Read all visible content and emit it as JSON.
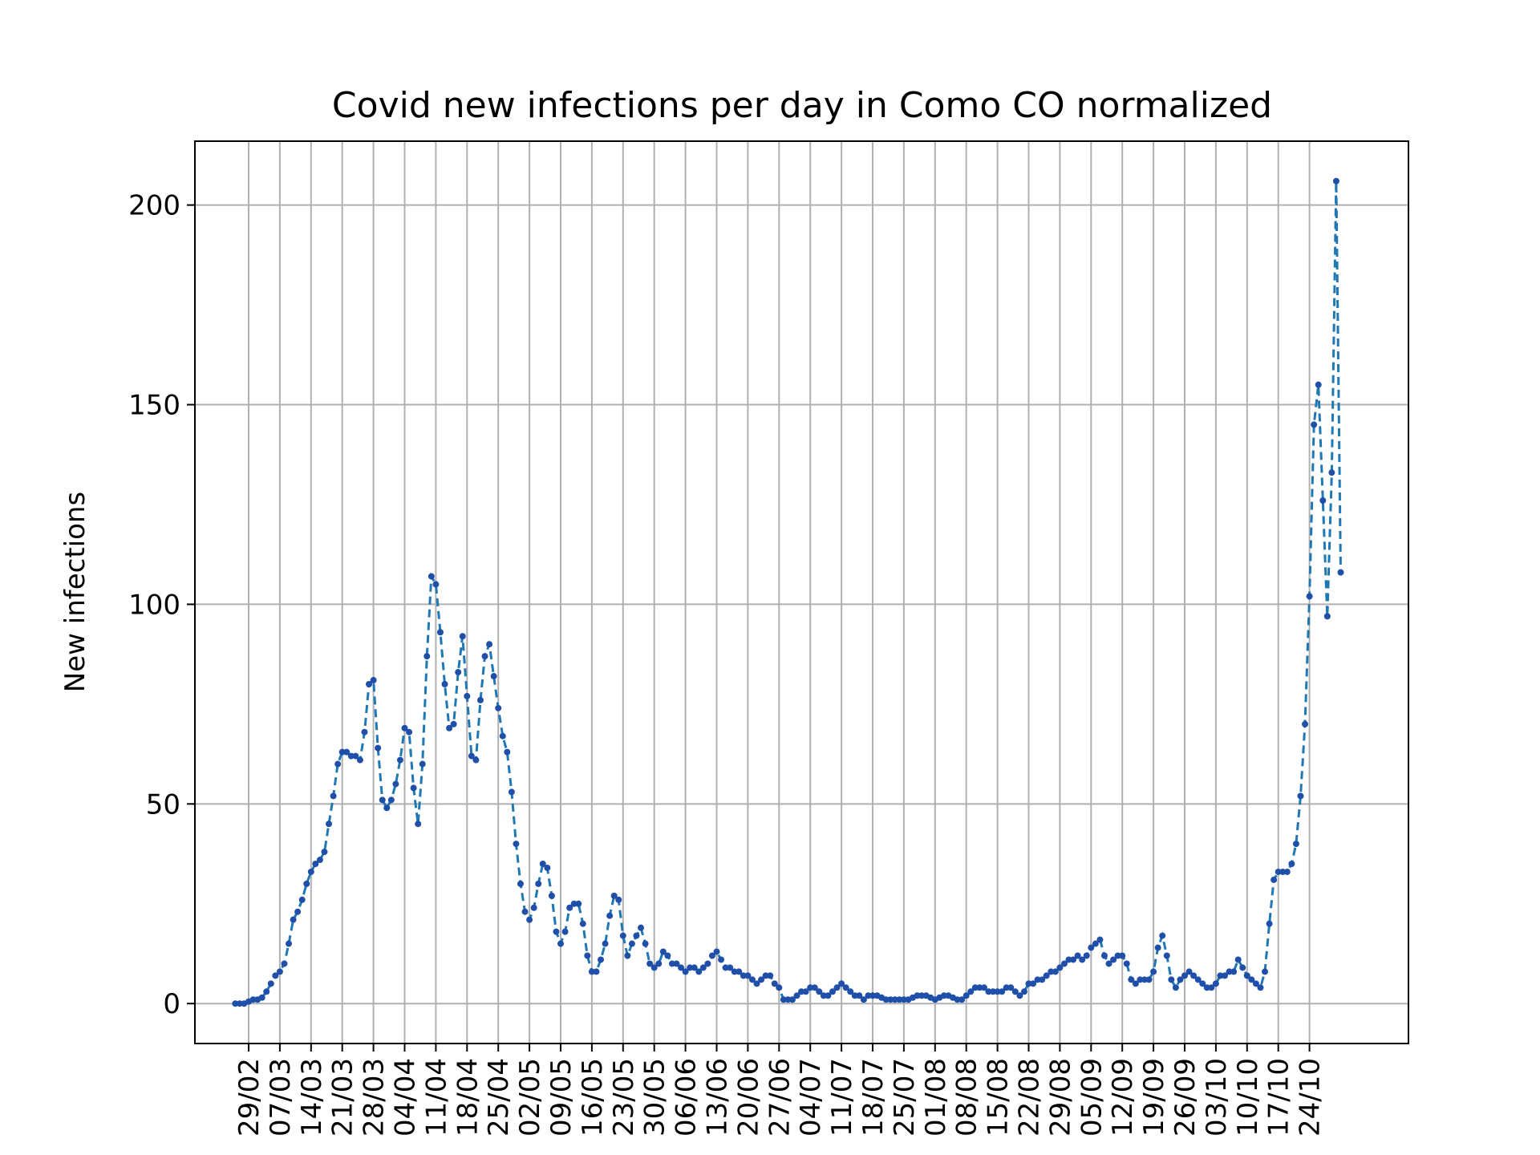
{
  "chart_data": {
    "type": "line",
    "title": "Covid new infections per day in Como CO normalized",
    "xlabel": "",
    "ylabel": "New infections",
    "ylim": [
      -10,
      216
    ],
    "yticks": [
      0,
      50,
      100,
      150,
      200
    ],
    "grid": true,
    "line_style": "dashed",
    "marker": "dot",
    "colors": {
      "line": "#1f77b4",
      "marker": "#1f4fa8"
    },
    "x_start": "2020-02-26",
    "xticks": [
      "29/02",
      "07/03",
      "14/03",
      "21/03",
      "28/03",
      "04/04",
      "11/04",
      "18/04",
      "25/04",
      "02/05",
      "09/05",
      "16/05",
      "23/05",
      "30/05",
      "06/06",
      "13/06",
      "20/06",
      "27/06",
      "04/07",
      "11/07",
      "18/07",
      "25/07",
      "01/08",
      "08/08",
      "15/08",
      "22/08",
      "29/08",
      "05/09",
      "12/09",
      "19/09",
      "26/09",
      "03/10",
      "10/10",
      "17/10",
      "24/10"
    ],
    "series": [
      {
        "values": [
          0,
          0,
          0,
          0.5,
          1,
          1,
          1.5,
          3,
          5,
          7,
          8,
          10,
          15,
          21,
          23,
          26,
          30,
          33,
          35,
          36,
          38,
          45,
          52,
          60,
          63,
          63,
          62,
          62,
          61,
          68,
          80,
          81,
          64,
          51,
          49,
          51,
          55,
          61,
          69,
          68,
          54,
          45,
          60,
          87,
          107,
          105,
          93,
          80,
          69,
          70,
          83,
          92,
          77,
          62,
          61,
          76,
          87,
          90,
          82,
          74,
          67,
          63,
          53,
          40,
          30,
          23,
          21,
          24,
          30,
          35,
          34,
          27,
          18,
          15,
          18,
          24,
          25,
          25,
          20,
          12,
          8,
          8,
          11,
          15,
          22,
          27,
          26,
          17,
          12,
          15,
          17,
          19,
          15,
          10,
          9,
          10,
          13,
          12,
          10,
          10,
          9,
          8,
          9,
          9,
          8,
          9,
          10,
          12,
          13,
          11,
          9,
          9,
          8,
          8,
          7,
          7,
          6,
          5,
          6,
          7,
          7,
          5,
          4,
          1,
          1,
          1,
          2,
          3,
          3,
          4,
          4,
          3,
          2,
          2,
          3,
          4,
          5,
          4,
          3,
          2,
          2,
          1,
          2,
          2,
          2,
          1.5,
          1,
          1,
          1,
          1,
          1,
          1,
          1.5,
          2,
          2,
          2,
          1.5,
          1,
          1.5,
          2,
          2,
          1.5,
          1,
          1,
          2,
          3,
          4,
          4,
          4,
          3,
          3,
          3,
          3,
          4,
          4,
          3,
          2,
          3,
          5,
          5,
          6,
          6,
          7,
          8,
          8,
          9,
          10,
          11,
          11,
          12,
          11,
          12,
          14,
          15,
          16,
          12,
          10,
          11,
          12,
          12,
          10,
          6,
          5,
          6,
          6,
          6,
          8,
          14,
          17,
          12,
          6,
          4,
          6,
          7,
          8,
          7,
          6,
          5,
          4,
          4,
          5,
          7,
          7,
          8,
          8,
          11,
          9,
          7,
          6,
          5,
          4,
          8,
          20,
          31,
          33,
          33,
          33,
          35,
          40,
          52,
          70,
          102,
          145,
          155,
          126,
          97,
          133,
          206,
          108
        ]
      }
    ]
  }
}
